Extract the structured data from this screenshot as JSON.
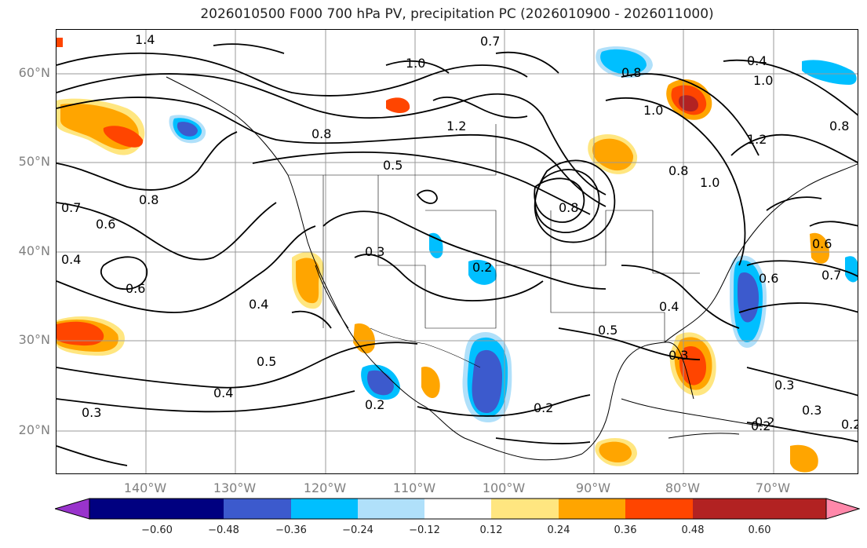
{
  "title": "2026010500 F000 700 hPa PV, precipitation PC (2026010900 - 2026011000)",
  "lat_labels": [
    "60°N",
    "50°N",
    "40°N",
    "30°N",
    "20°N"
  ],
  "lon_labels": [
    "140°W",
    "130°W",
    "120°W",
    "110°W",
    "100°W",
    "90°W",
    "80°W",
    "70°W"
  ],
  "colorbar": {
    "ticks": [
      "−0.60",
      "−0.48",
      "−0.36",
      "−0.24",
      "−0.12",
      "0.12",
      "0.24",
      "0.36",
      "0.48",
      "0.60"
    ],
    "colors": [
      "#9933cc",
      "#000080",
      "#3c5acd",
      "#00bfff",
      "#b0e0fa",
      "#ffffff",
      "#ffe680",
      "#ffa500",
      "#ff4500",
      "#b22222",
      "#ff88aa"
    ]
  },
  "contour_labels": [
    {
      "text": "1.4"
    },
    {
      "text": "0.7"
    },
    {
      "text": "0.8"
    },
    {
      "text": "0.6"
    },
    {
      "text": "0.4"
    },
    {
      "text": "0.6"
    },
    {
      "text": "0.4"
    },
    {
      "text": "0.5"
    },
    {
      "text": "0.4"
    },
    {
      "text": "0.3"
    },
    {
      "text": "0.2"
    },
    {
      "text": "0.8"
    },
    {
      "text": "0.5"
    },
    {
      "text": "1.2"
    },
    {
      "text": "1.0"
    },
    {
      "text": "0.3"
    },
    {
      "text": "0.2"
    },
    {
      "text": "0.2"
    },
    {
      "text": "0.2"
    },
    {
      "text": "0.8"
    },
    {
      "text": "1.0"
    },
    {
      "text": "0.5"
    },
    {
      "text": "0.4"
    },
    {
      "text": "0.8"
    },
    {
      "text": "1.2"
    },
    {
      "text": "1.0"
    },
    {
      "text": "0.8"
    },
    {
      "text": "0.6"
    },
    {
      "text": "0.7"
    },
    {
      "text": "0.6"
    },
    {
      "text": "0.3"
    },
    {
      "text": "0.3"
    },
    {
      "text": "0.2"
    },
    {
      "text": "0.2"
    },
    {
      "text": "0.3"
    },
    {
      "text": "0.4"
    },
    {
      "text": "0.7"
    },
    {
      "text": "1.0"
    },
    {
      "text": "0.8"
    }
  ]
}
